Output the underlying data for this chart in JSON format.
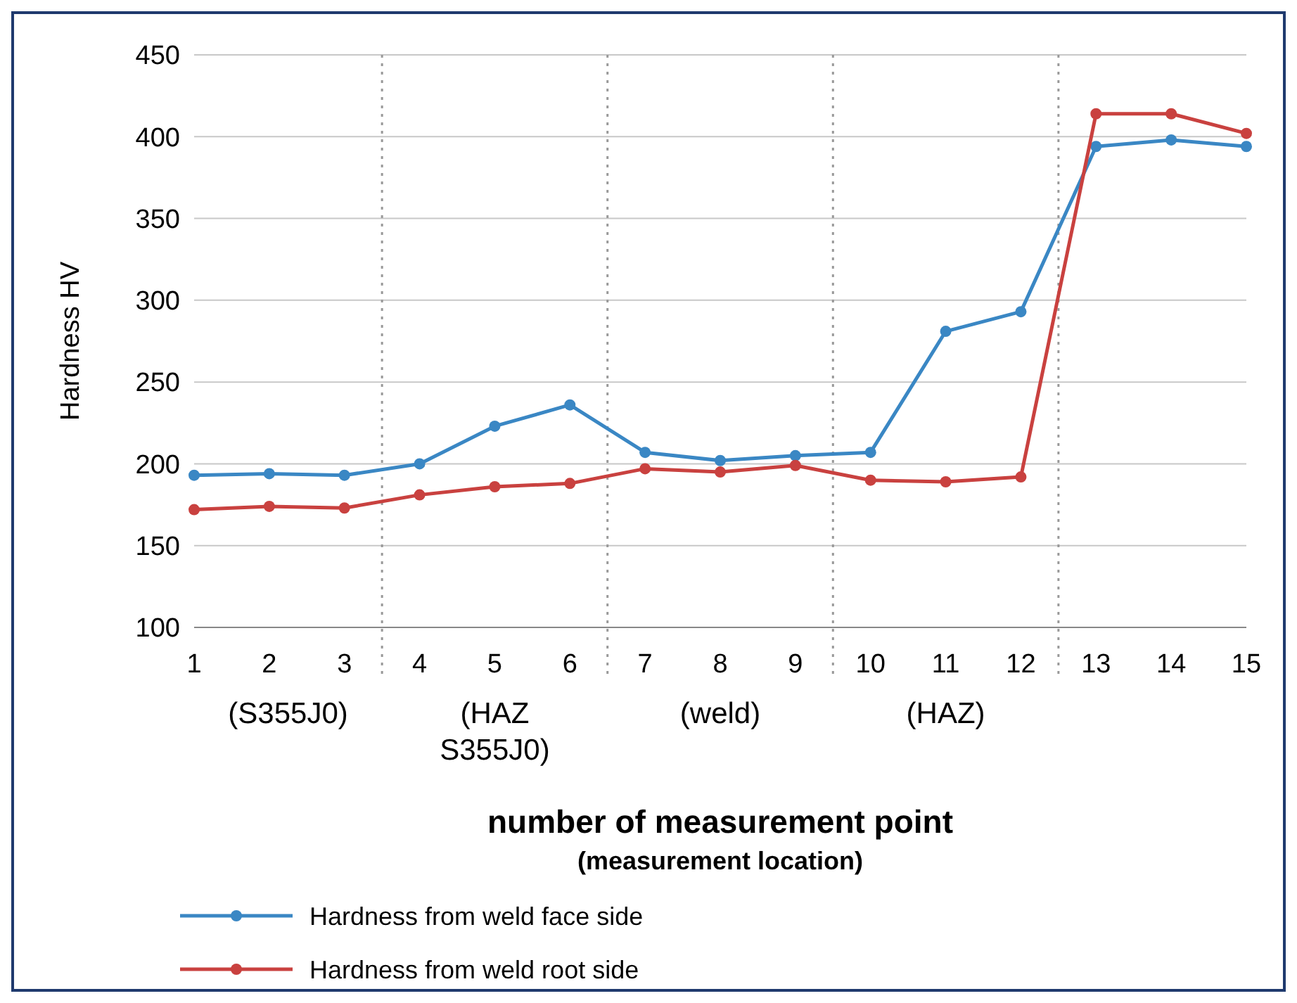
{
  "chart_data": {
    "type": "line",
    "ylabel": "Hardness HV",
    "xlabel": "number of measurement point",
    "x": [
      1,
      2,
      3,
      4,
      5,
      6,
      7,
      8,
      9,
      10,
      11,
      12,
      13,
      14,
      15
    ],
    "xlim": [
      1,
      15
    ],
    "xticks": [
      1,
      2,
      3,
      4,
      5,
      6,
      7,
      8,
      9,
      10,
      11,
      12,
      13,
      14,
      15
    ],
    "ylim": [
      100,
      450
    ],
    "yticks": [
      100,
      150,
      200,
      250,
      300,
      350,
      400,
      450
    ],
    "grid": "y",
    "marker": "circle",
    "line_style": "solid",
    "legend": "bottom left",
    "series": [
      {
        "name": "Hardness from weld face side",
        "color": "#3a87c4",
        "values": [
          193,
          194,
          193,
          200,
          223,
          236,
          207,
          202,
          205,
          207,
          281,
          293,
          394,
          398,
          394
        ]
      },
      {
        "name": "Hardness from weld root side",
        "color": "#c9413f",
        "values": [
          172,
          174,
          173,
          181,
          186,
          188,
          197,
          195,
          199,
          190,
          189,
          192,
          414,
          414,
          402
        ]
      }
    ],
    "ref_lines": [
      {
        "axis": "x",
        "value": 3.5,
        "label": null,
        "color": "#999999",
        "line_style": "dotted"
      },
      {
        "axis": "x",
        "value": 6.5,
        "label": null,
        "color": "#999999",
        "line_style": "dotted"
      },
      {
        "axis": "x",
        "value": 9.5,
        "label": null,
        "color": "#999999",
        "line_style": "dotted"
      },
      {
        "axis": "x",
        "value": 12.5,
        "label": null,
        "color": "#999999",
        "line_style": "dotted"
      }
    ],
    "annotations": [
      "(S355J0)",
      "(HAZ\nS355J0)",
      "(weld)",
      "(HAZ)"
    ],
    "subtitle": "(measurement location)"
  }
}
